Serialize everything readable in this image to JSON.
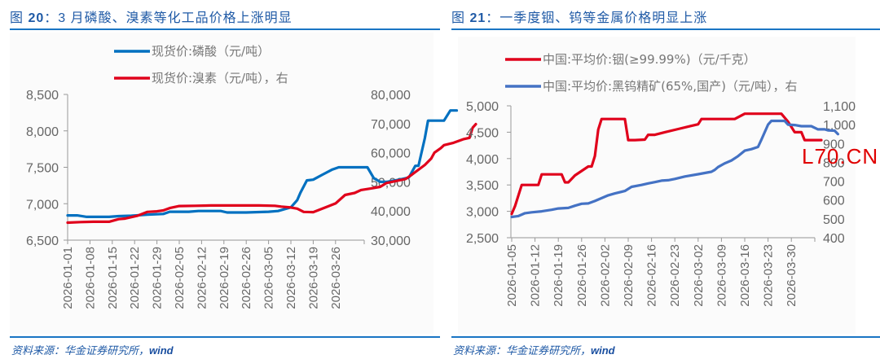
{
  "left": {
    "title_prefix": "图 ",
    "title_num": "20",
    "title_text": "：3 月磷酸、溴素等化工品价格上涨明显",
    "source_text": "资料来源：华金证券研究所，",
    "source_wind": "wind"
  },
  "right": {
    "title_prefix": "图 ",
    "title_num": "21",
    "title_text": "：一季度铟、钨等金属价格明显上涨",
    "source_text": "资料来源：华金证券研究所，",
    "source_wind": "wind"
  },
  "watermark": "L70.CN",
  "colors": {
    "accent_blue": "#0070c0",
    "accent_red": "#e0001b",
    "series_blue_light": "#4472c4",
    "title_blue": "#1f5aa6",
    "axis_gray": "#999999"
  },
  "chart_data": [
    {
      "type": "line",
      "title": "图20：3月磷酸、溴素等化工品价格上涨明显",
      "xlabel": "",
      "ylabel": "",
      "ylim": [
        6500,
        8500
      ],
      "y2lim": [
        30000,
        80000
      ],
      "yticks": [
        "6,500",
        "7,000",
        "7,500",
        "8,000",
        "8,500"
      ],
      "y2ticks": [
        "30,000",
        "40,000",
        "50,000",
        "60,000",
        "70,000",
        "80,000"
      ],
      "xticks": [
        "2026-01-01",
        "2026-01-08",
        "2026-01-15",
        "2026-01-22",
        "2026-01-29",
        "2026-02-05",
        "2026-02-12",
        "2026-02-19",
        "2026-02-26",
        "2026-03-05",
        "2026-03-12",
        "2026-03-19",
        "2026-03-26"
      ],
      "legend_position": "top",
      "grid": false,
      "series": [
        {
          "name": "现货价:磷酸（元/吨）",
          "axis": "left",
          "color": "#0070c0",
          "points": [
            [
              0,
              6840
            ],
            [
              3,
              6840
            ],
            [
              6,
              6820
            ],
            [
              13,
              6820
            ],
            [
              16,
              6830
            ],
            [
              20,
              6835
            ],
            [
              25,
              6850
            ],
            [
              30,
              6860
            ],
            [
              32,
              6890
            ],
            [
              38,
              6890
            ],
            [
              41,
              6900
            ],
            [
              48,
              6900
            ],
            [
              50,
              6880
            ],
            [
              56,
              6880
            ],
            [
              60,
              6885
            ],
            [
              63,
              6890
            ],
            [
              66,
              6900
            ],
            [
              70,
              6950
            ],
            [
              72,
              7050
            ],
            [
              73,
              7150
            ],
            [
              75,
              7320
            ],
            [
              77,
              7330
            ],
            [
              80,
              7400
            ],
            [
              83,
              7470
            ],
            [
              85,
              7500
            ],
            [
              88,
              7500
            ],
            [
              92,
              7500
            ],
            [
              94,
              7500
            ],
            [
              96,
              7350
            ],
            [
              98,
              7300
            ],
            [
              100,
              7300
            ],
            [
              104,
              7330
            ],
            [
              107,
              7360
            ],
            [
              109,
              7520
            ],
            [
              110,
              7520
            ],
            [
              112,
              7900
            ],
            [
              113,
              8140
            ],
            [
              117,
              8140
            ],
            [
              118,
              8140
            ],
            [
              120,
              8280
            ],
            [
              122,
              8280
            ]
          ]
        },
        {
          "name": "现货价:溴素（元/吨），右",
          "axis": "right",
          "color": "#e0001b",
          "points": [
            [
              0,
              36000
            ],
            [
              4,
              36200
            ],
            [
              8,
              36300
            ],
            [
              13,
              36300
            ],
            [
              16,
              37200
            ],
            [
              18,
              37400
            ],
            [
              22,
              38400
            ],
            [
              25,
              39700
            ],
            [
              28,
              39900
            ],
            [
              30,
              40200
            ],
            [
              32,
              41000
            ],
            [
              35,
              41700
            ],
            [
              40,
              41800
            ],
            [
              45,
              41900
            ],
            [
              52,
              41900
            ],
            [
              60,
              41900
            ],
            [
              65,
              41800
            ],
            [
              67,
              41500
            ],
            [
              70,
              41200
            ],
            [
              72,
              40800
            ],
            [
              74,
              39700
            ],
            [
              77,
              39600
            ],
            [
              81,
              41300
            ],
            [
              84,
              42600
            ],
            [
              87,
              45500
            ],
            [
              90,
              46200
            ],
            [
              92,
              47200
            ],
            [
              95,
              47700
            ],
            [
              98,
              48300
            ],
            [
              100,
              49600
            ],
            [
              103,
              50300
            ],
            [
              106,
              51000
            ],
            [
              108,
              52500
            ],
            [
              112,
              55800
            ],
            [
              114,
              58000
            ],
            [
              115,
              60000
            ],
            [
              117,
              61600
            ],
            [
              118,
              62600
            ],
            [
              121,
              63400
            ],
            [
              124,
              64600
            ],
            [
              126,
              65100
            ],
            [
              127,
              68600
            ],
            [
              128,
              69800
            ]
          ]
        }
      ]
    },
    {
      "type": "line",
      "title": "图21：一季度铟、钨等金属价格明显上涨",
      "xlabel": "",
      "ylabel": "",
      "ylim": [
        2500,
        5000
      ],
      "y2lim": [
        400,
        1100
      ],
      "yticks": [
        "2,500",
        "3,000",
        "3,500",
        "4,000",
        "4,500",
        "5,000"
      ],
      "y2ticks": [
        "400",
        "500",
        "600",
        "700",
        "800",
        "900",
        "1,000",
        "1,100"
      ],
      "xticks": [
        "2026-01-05",
        "2026-01-12",
        "2026-01-19",
        "2026-01-26",
        "2026-02-02",
        "2026-02-09",
        "2026-02-16",
        "2026-02-23",
        "2026-03-02",
        "2026-03-09",
        "2026-03-16",
        "2026-03-23",
        "2026-03-30"
      ],
      "legend_position": "top",
      "grid": false,
      "series": [
        {
          "name": "中国:平均价:铟(≥99.99%)（元/千克）",
          "axis": "left",
          "color": "#e0001b",
          "points": [
            [
              0,
              2950
            ],
            [
              1,
              3100
            ],
            [
              3,
              3500
            ],
            [
              5,
              3500
            ],
            [
              8,
              3500
            ],
            [
              9,
              3700
            ],
            [
              10,
              3700
            ],
            [
              15,
              3700
            ],
            [
              16,
              3550
            ],
            [
              17,
              3550
            ],
            [
              19,
              3680
            ],
            [
              23,
              3850
            ],
            [
              24,
              3850
            ],
            [
              25,
              4050
            ],
            [
              26,
              4550
            ],
            [
              27,
              4750
            ],
            [
              29,
              4750
            ],
            [
              33,
              4750
            ],
            [
              34,
              4750
            ],
            [
              35,
              4350
            ],
            [
              37,
              4350
            ],
            [
              40,
              4360
            ],
            [
              41,
              4450
            ],
            [
              43,
              4450
            ],
            [
              46,
              4500
            ],
            [
              50,
              4560
            ],
            [
              54,
              4620
            ],
            [
              56,
              4650
            ],
            [
              57,
              4750
            ],
            [
              60,
              4750
            ],
            [
              65,
              4750
            ],
            [
              67,
              4750
            ],
            [
              70,
              4850
            ],
            [
              71,
              4850
            ],
            [
              75,
              4850
            ],
            [
              80,
              4850
            ],
            [
              81,
              4850
            ],
            [
              83,
              4700
            ],
            [
              84,
              4600
            ],
            [
              85,
              4500
            ],
            [
              87,
              4500
            ],
            [
              88,
              4350
            ],
            [
              93,
              4350
            ]
          ]
        },
        {
          "name": "中国:平均价:黑钨精矿(65%,国产)（元/吨），右",
          "axis": "right",
          "color": "#4472c4",
          "points": [
            [
              0,
              510
            ],
            [
              2,
              515
            ],
            [
              4,
              530
            ],
            [
              6,
              535
            ],
            [
              9,
              540
            ],
            [
              12,
              548
            ],
            [
              14,
              555
            ],
            [
              17,
              558
            ],
            [
              19,
              570
            ],
            [
              21,
              580
            ],
            [
              23,
              582
            ],
            [
              25,
              595
            ],
            [
              27,
              610
            ],
            [
              29,
              625
            ],
            [
              31,
              635
            ],
            [
              34,
              648
            ],
            [
              36,
              670
            ],
            [
              39,
              680
            ],
            [
              41,
              688
            ],
            [
              43,
              695
            ],
            [
              45,
              703
            ],
            [
              47,
              705
            ],
            [
              49,
              712
            ],
            [
              52,
              725
            ],
            [
              56,
              737
            ],
            [
              60,
              750
            ],
            [
              61,
              760
            ],
            [
              62,
              775
            ],
            [
              64,
              795
            ],
            [
              66,
              810
            ],
            [
              68,
              833
            ],
            [
              70,
              862
            ],
            [
              72,
              870
            ],
            [
              74,
              882
            ],
            [
              75,
              920
            ],
            [
              77,
              1000
            ],
            [
              78,
              1020
            ],
            [
              80,
              1020
            ],
            [
              82,
              1020
            ],
            [
              83,
              1000
            ],
            [
              85,
              998
            ],
            [
              87,
              992
            ],
            [
              90,
              992
            ],
            [
              92,
              975
            ],
            [
              94,
              975
            ],
            [
              95,
              970
            ],
            [
              97,
              968
            ],
            [
              98,
              950
            ]
          ]
        }
      ]
    }
  ]
}
